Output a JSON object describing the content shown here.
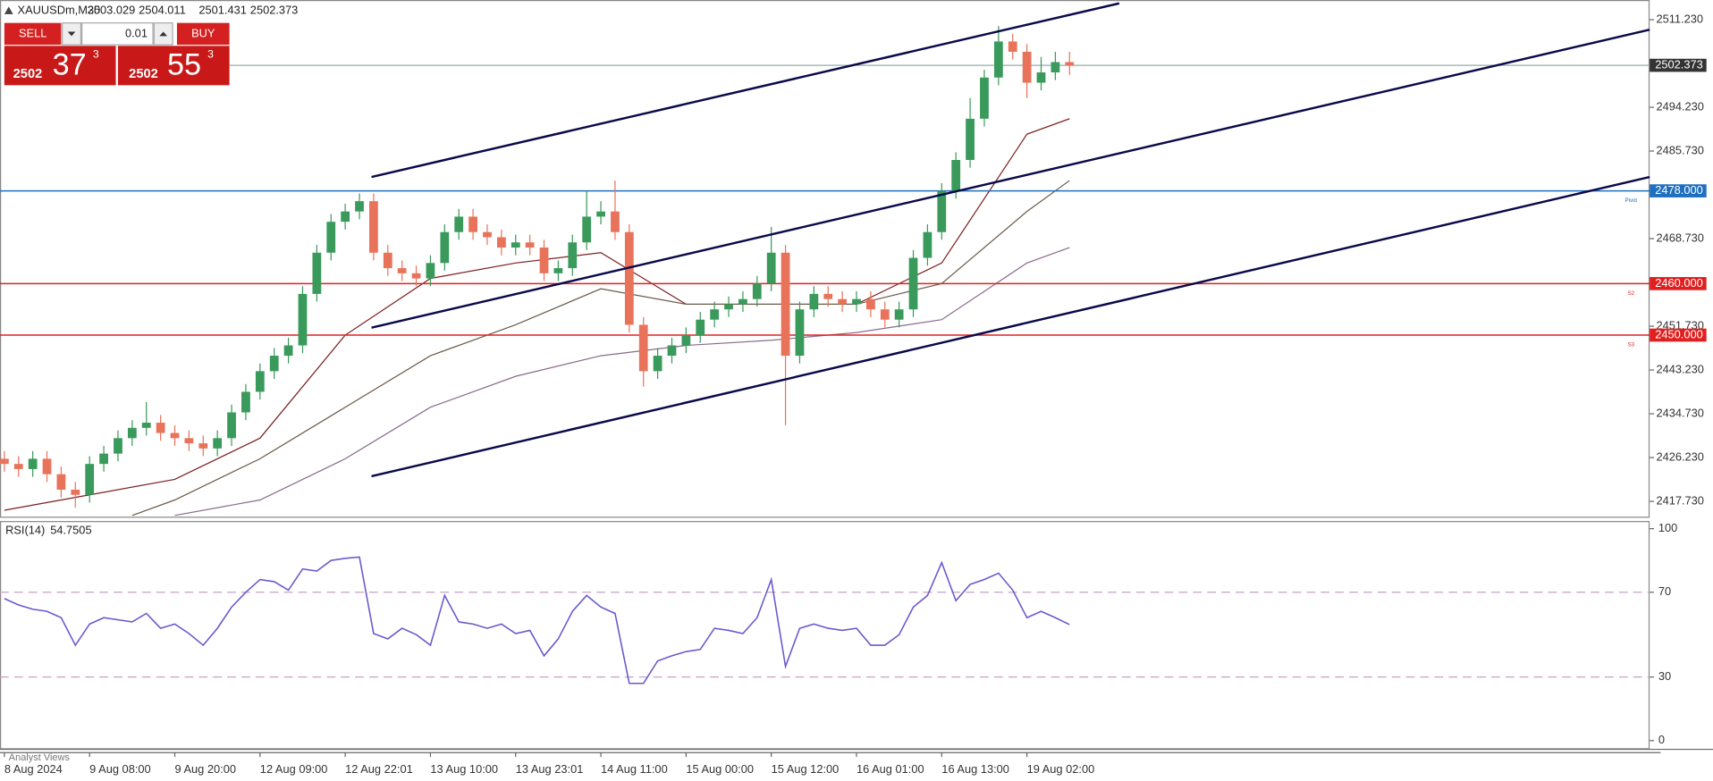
{
  "header": {
    "symbol": "XAUUSDm,M30",
    "open": 2503.029,
    "high": 2504.011,
    "low": 2501.431,
    "close": 2502.373
  },
  "trade_panel": {
    "sell": "SELL",
    "buy": "BUY",
    "volume": 0.01,
    "sell_price": {
      "big": "2502",
      "pips": "37",
      "sup": "3"
    },
    "buy_price": {
      "big": "2502",
      "pips": "55",
      "sup": "3"
    }
  },
  "footer": {
    "tab": "Analyst Views"
  },
  "chart_data": [
    {
      "type": "candlestick",
      "categories": [
        "8 Aug 2024",
        null,
        null,
        null,
        null,
        null,
        "9 Aug 08:00",
        null,
        null,
        null,
        null,
        null,
        "9 Aug 20:00",
        null,
        null,
        null,
        null,
        null,
        "12 Aug 09:00",
        null,
        null,
        null,
        null,
        null,
        "12 Aug 22:01",
        null,
        null,
        null,
        null,
        null,
        "13 Aug 10:00",
        null,
        null,
        null,
        null,
        null,
        "13 Aug 23:01",
        null,
        null,
        null,
        null,
        null,
        "14 Aug 11:00",
        null,
        null,
        null,
        null,
        null,
        "15 Aug 00:00",
        null,
        null,
        null,
        null,
        null,
        "15 Aug 12:00",
        null,
        null,
        null,
        null,
        null,
        "16 Aug 01:00",
        null,
        null,
        null,
        null,
        null,
        "16 Aug 13:00",
        null,
        null,
        null,
        null,
        null,
        "19 Aug 02:00",
        null,
        null,
        null
      ],
      "open": [
        2426,
        2425,
        2424,
        2426,
        2423,
        2420,
        2419,
        2425,
        2427,
        2430,
        2432,
        2433,
        2431,
        2430,
        2429,
        2428,
        2430,
        2435,
        2439,
        2443,
        2446,
        2448,
        2458,
        2466,
        2472,
        2474,
        2476,
        2466,
        2463,
        2462,
        2461,
        2464,
        2470,
        2473,
        2470,
        2469,
        2467,
        2468,
        2467,
        2462,
        2463,
        2468,
        2473,
        2474,
        2470,
        2452,
        2443,
        2446,
        2448,
        2450,
        2453,
        2455,
        2456,
        2457,
        2460,
        2466,
        2446,
        2455,
        2458,
        2457,
        2456,
        2457,
        2455,
        2453,
        2455,
        2465,
        2470,
        2478,
        2484,
        2492,
        2500,
        2507,
        2505,
        2499,
        2501,
        2503
      ],
      "high": [
        2427.5,
        2426.5,
        2427.5,
        2427.5,
        2424.5,
        2421.5,
        2426.5,
        2428.5,
        2431.5,
        2433.5,
        2437,
        2434.5,
        2432.5,
        2431.5,
        2430.5,
        2431.5,
        2436.5,
        2440.5,
        2444.5,
        2447.5,
        2449.5,
        2459.5,
        2467.5,
        2473.5,
        2475.5,
        2477.5,
        2477.5,
        2467.5,
        2464.5,
        2463.5,
        2465.5,
        2471.5,
        2474.5,
        2474.5,
        2471.5,
        2470.5,
        2469.5,
        2469.5,
        2468.5,
        2464.5,
        2469.5,
        2478,
        2476,
        2480,
        2471.5,
        2453.5,
        2447.5,
        2449.5,
        2451.5,
        2454.5,
        2456.5,
        2457.5,
        2458.5,
        2461.5,
        2471,
        2467.5,
        2456.5,
        2459.5,
        2459.5,
        2458.5,
        2458.5,
        2458.5,
        2456.5,
        2456.5,
        2466.5,
        2471.5,
        2479.5,
        2485.5,
        2496,
        2501.5,
        2510,
        2508.5,
        2506.5,
        2504,
        2505,
        2505
      ],
      "low": [
        2423.5,
        2422.5,
        2422.5,
        2421.5,
        2418.5,
        2416.5,
        2417.5,
        2423.5,
        2425.5,
        2428.5,
        2430.5,
        2429.5,
        2428.5,
        2427.5,
        2426.5,
        2426.5,
        2428.5,
        2433.5,
        2437.5,
        2441.5,
        2444.5,
        2446.5,
        2456.5,
        2464.5,
        2470.5,
        2472.5,
        2464.5,
        2461.5,
        2460.5,
        2459.5,
        2459.5,
        2462.5,
        2468.5,
        2468.5,
        2467.5,
        2465.5,
        2465.5,
        2465.5,
        2460.5,
        2460.5,
        2461.5,
        2466.5,
        2471.5,
        2468.5,
        2450.5,
        2440,
        2441.5,
        2444.5,
        2446.5,
        2448.5,
        2451.5,
        2453.5,
        2454.5,
        2455.5,
        2458.5,
        2432.5,
        2444.5,
        2453.5,
        2455.5,
        2454.5,
        2454.5,
        2453.5,
        2451.5,
        2451.5,
        2453.5,
        2463.5,
        2468.5,
        2476.5,
        2482.5,
        2490.5,
        2498.5,
        2503.5,
        2496,
        2497.5,
        2499.5,
        2500.5
      ],
      "close": [
        2425,
        2424,
        2426,
        2423,
        2420,
        2419,
        2425,
        2427,
        2430,
        2432,
        2433,
        2431,
        2430,
        2429,
        2428,
        2430,
        2435,
        2439,
        2443,
        2446,
        2448,
        2458,
        2466,
        2472,
        2474,
        2476,
        2466,
        2463,
        2462,
        2461,
        2464,
        2470,
        2473,
        2470,
        2469,
        2467,
        2468,
        2467,
        2462,
        2463,
        2468,
        2473,
        2474,
        2470,
        2452,
        2443,
        2446,
        2448,
        2450,
        2453,
        2455,
        2456,
        2457,
        2460,
        2466,
        2446,
        2455,
        2458,
        2457,
        2456,
        2457,
        2455,
        2453,
        2455,
        2465,
        2470,
        2478,
        2484,
        2492,
        2500,
        2507,
        2505,
        2499,
        2501,
        2503,
        2502.373
      ],
      "up_color": "#3a9a5b",
      "down_color": "#e8735a",
      "ylim": [
        2414.76,
        2515.05
      ],
      "yticks": [
        {
          "value": 2511.23,
          "label": "2511.230"
        },
        {
          "value": 2494.23,
          "label": "2494.230"
        },
        {
          "value": 2485.73,
          "label": "2485.730"
        },
        {
          "value": 2468.73,
          "label": "2468.730"
        },
        {
          "value": 2451.73,
          "label": "2451.730"
        },
        {
          "value": 2443.23,
          "label": "2443.230"
        },
        {
          "value": 2434.73,
          "label": "2434.730"
        },
        {
          "value": 2426.23,
          "label": "2426.230"
        },
        {
          "value": 2417.73,
          "label": "2417.730"
        }
      ],
      "grid": false,
      "last_price": 2502.373,
      "levels": [
        {
          "name": "Pivot",
          "value": 2478,
          "label": "2478.000",
          "color": "#1f6fbf"
        },
        {
          "name": "S2",
          "value": 2460,
          "label": "2460.000",
          "color": "#e02020"
        },
        {
          "name": "S3",
          "value": 2450,
          "label": "2450.000",
          "color": "#e02020"
        }
      ],
      "moving_averages": [
        {
          "color": "#7a1f1f",
          "x": [
            0,
            6,
            12,
            18,
            24,
            30,
            36,
            42,
            48,
            54,
            60,
            66,
            72,
            75
          ],
          "values": [
            2416,
            2419,
            2422,
            2430,
            2450,
            2461,
            2464,
            2466,
            2456,
            2456,
            2456,
            2464,
            2489,
            2492
          ]
        },
        {
          "color": "#6b5a4a",
          "x": [
            9,
            12,
            18,
            24,
            30,
            36,
            42,
            48,
            54,
            60,
            66,
            72,
            75
          ],
          "values": [
            2415,
            2418,
            2426,
            2436,
            2446,
            2452,
            2459,
            2456,
            2456,
            2456,
            2460,
            2474,
            2480
          ]
        },
        {
          "color": "#8a6a8a",
          "x": [
            12,
            18,
            24,
            30,
            36,
            42,
            48,
            54,
            60,
            66,
            72,
            75
          ],
          "values": [
            2415,
            2418,
            2426,
            2436,
            2442,
            2446,
            2448,
            2449,
            2450.5,
            2453,
            2464,
            2467
          ]
        }
      ],
      "trendlines": [
        {
          "color": "#0a0a4a",
          "x1": 25.85,
          "y1": 2480.7,
          "x2": 78.5,
          "y2": 2514.4
        },
        {
          "color": "#0a0a4a",
          "x1": 25.85,
          "y1": 2451.45,
          "x2": 115.85,
          "y2": 2509.3
        },
        {
          "color": "#0a0a4a",
          "x1": 25.85,
          "y1": 2422.6,
          "x2": 115.85,
          "y2": 2480.7
        }
      ]
    },
    {
      "type": "line",
      "title": "RSI(14)",
      "current": 54.7505,
      "color": "#6a5acd",
      "values": [
        67,
        64,
        62,
        61,
        58,
        45,
        55,
        58,
        57,
        56,
        60,
        53,
        55,
        50.5,
        45,
        53,
        63,
        70,
        76,
        75,
        71,
        81,
        80,
        85,
        86,
        86.6,
        50.5,
        48,
        53,
        50,
        45,
        68.5,
        56,
        55,
        53,
        55,
        50.5,
        52,
        40,
        48,
        61,
        68.5,
        63,
        60,
        27,
        27,
        37.6,
        40,
        42,
        43,
        53,
        52,
        50.5,
        58,
        76,
        35,
        53,
        55,
        53,
        52,
        53,
        45,
        45,
        50,
        63,
        68.5,
        84,
        66,
        73.7,
        76,
        79,
        71,
        58,
        61,
        58,
        54.7505
      ],
      "ylim": [
        -3.6,
        103.6
      ],
      "yticks": [
        100,
        70,
        30,
        0
      ],
      "levels": [
        70,
        30
      ],
      "level_color": "#c8a0c8"
    }
  ]
}
